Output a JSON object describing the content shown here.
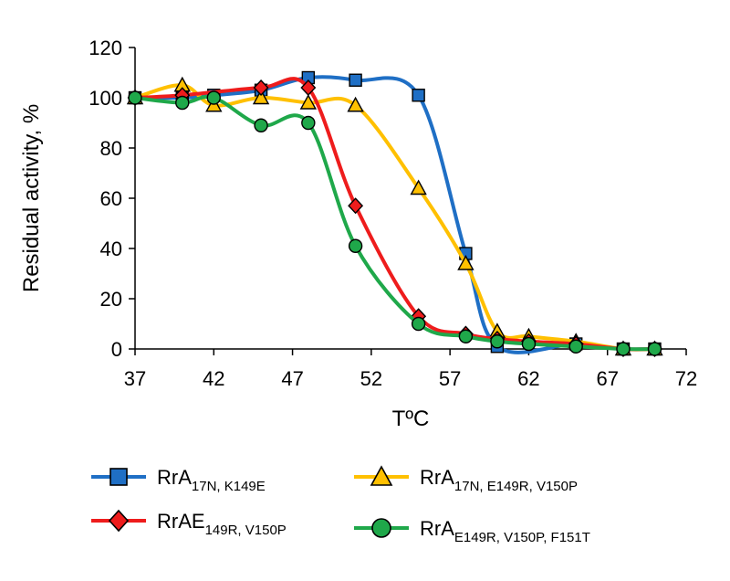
{
  "chart_data": {
    "type": "line",
    "title": "",
    "xlabel": "TºC",
    "ylabel": "Residual activity, %",
    "xlim": [
      37,
      72
    ],
    "ylim": [
      0,
      120
    ],
    "xticks": [
      37,
      42,
      47,
      52,
      57,
      62,
      67,
      72
    ],
    "yticks": [
      0,
      20,
      40,
      60,
      80,
      100,
      120
    ],
    "grid": false,
    "legend_position": "bottom",
    "series": [
      {
        "name": "RrA",
        "name_sub": "17N, K149E",
        "color": "#1f6fc5",
        "marker": "square",
        "x": [
          37,
          40,
          42,
          45,
          48,
          51,
          55,
          58,
          60,
          65,
          68,
          70
        ],
        "y": [
          100,
          100,
          101,
          103,
          108,
          107,
          101,
          38,
          1,
          2,
          0,
          0
        ]
      },
      {
        "name": "RrA",
        "name_sub": "17N, E149R, V150P",
        "color": "#ffc000",
        "marker": "triangle",
        "x": [
          37,
          40,
          42,
          45,
          48,
          51,
          55,
          58,
          60,
          62,
          65,
          68,
          70
        ],
        "y": [
          100,
          105,
          97,
          100,
          98,
          97,
          64,
          34,
          7,
          5,
          3,
          0,
          0
        ]
      },
      {
        "name": "RrAE",
        "name_sub": "149R, V150P",
        "color": "#ee1c1c",
        "marker": "diamond",
        "x": [
          37,
          40,
          45,
          48,
          51,
          55,
          58,
          60,
          62,
          65,
          68,
          70
        ],
        "y": [
          100,
          101,
          104,
          104,
          57,
          13,
          6,
          4,
          3,
          2,
          0,
          0
        ]
      },
      {
        "name": "RrA",
        "name_sub": "E149R, V150P, F151T",
        "color": "#1fa84a",
        "marker": "circle",
        "x": [
          37,
          40,
          42,
          45,
          48,
          51,
          55,
          58,
          60,
          62,
          65,
          68,
          70
        ],
        "y": [
          100,
          98,
          100,
          89,
          90,
          41,
          10,
          5,
          3,
          2,
          1,
          0,
          0
        ]
      }
    ]
  }
}
